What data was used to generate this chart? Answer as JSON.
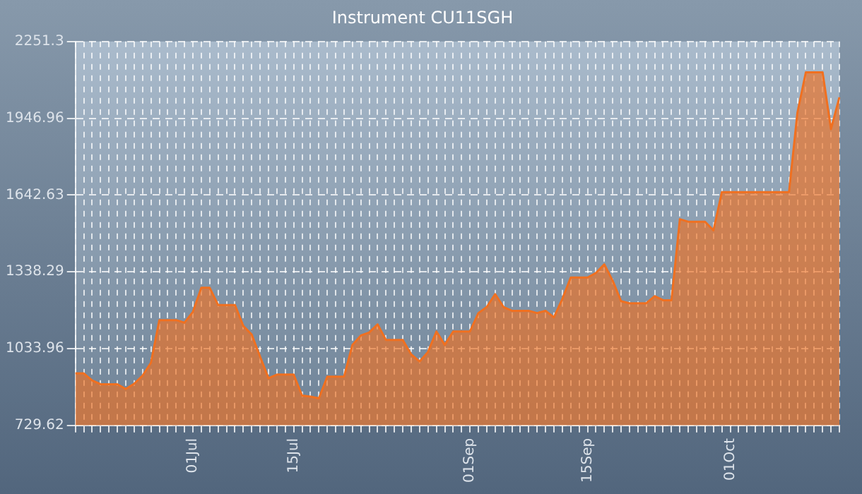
{
  "chart_data": {
    "type": "area",
    "title": "Instrument CU11SGH",
    "categories": [
      null,
      null,
      null,
      null,
      null,
      null,
      null,
      null,
      null,
      null,
      null,
      null,
      null,
      null,
      "01Jul",
      null,
      null,
      null,
      null,
      null,
      null,
      null,
      null,
      null,
      null,
      null,
      "15Jul",
      null,
      null,
      null,
      null,
      null,
      null,
      null,
      null,
      null,
      null,
      null,
      null,
      null,
      null,
      null,
      null,
      null,
      null,
      null,
      null,
      "01Sep",
      null,
      null,
      null,
      null,
      null,
      null,
      null,
      null,
      null,
      null,
      null,
      null,
      null,
      "15Sep",
      null,
      null,
      null,
      null,
      null,
      null,
      null,
      null,
      null,
      null,
      null,
      null,
      null,
      null,
      null,
      null,
      "01Oct",
      null,
      null,
      null,
      null,
      null,
      null,
      null,
      null,
      null,
      null,
      null,
      null,
      null
    ],
    "values": [
      936,
      936,
      908,
      893,
      893,
      893,
      874,
      895,
      927,
      978,
      1147,
      1147,
      1147,
      1137,
      1180,
      1275,
      1275,
      1207,
      1207,
      1207,
      1124,
      1090,
      1002,
      917,
      931,
      931,
      931,
      848,
      844,
      837,
      923,
      923,
      923,
      1049,
      1086,
      1098,
      1130,
      1068,
      1068,
      1068,
      1011,
      983,
      1021,
      1102,
      1049,
      1102,
      1102,
      1102,
      1175,
      1199,
      1250,
      1199,
      1184,
      1184,
      1184,
      1175,
      1184,
      1158,
      1231,
      1316,
      1316,
      1316,
      1334,
      1368,
      1303,
      1222,
      1214,
      1214,
      1214,
      1242,
      1226,
      1226,
      1547,
      1537,
      1537,
      1537,
      1503,
      1654,
      1654,
      1654,
      1654,
      1654,
      1654,
      1654,
      1654,
      1654,
      1969,
      2129,
      2129,
      2129,
      1904,
      2030
    ],
    "color": "#f07020",
    "ylim": [
      729.62,
      2251.3
    ],
    "yticks": [
      729.62,
      1033.96,
      1338.29,
      1642.63,
      1946.96,
      2251.3
    ],
    "grid": true
  }
}
